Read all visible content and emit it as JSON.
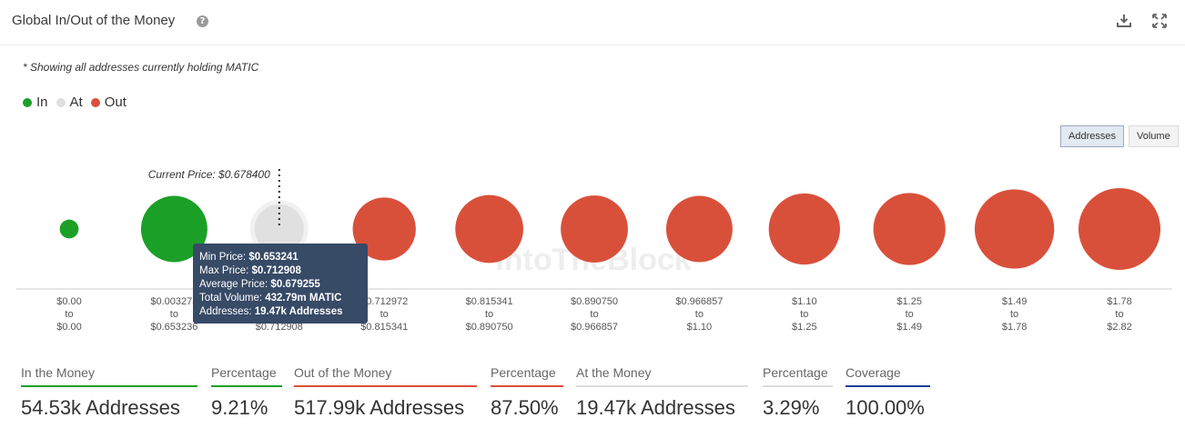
{
  "header": {
    "title": "Global In/Out of the Money",
    "help_icon": "question-mark-icon",
    "download_icon": "download-icon",
    "expand_icon": "expand-icon"
  },
  "note": "* Showing all addresses currently holding MATIC",
  "legend": [
    {
      "label": "In",
      "color": "#1ba027"
    },
    {
      "label": "At",
      "color": "#e0e0e0"
    },
    {
      "label": "Out",
      "color": "#d9503a"
    }
  ],
  "toggle": {
    "addresses": "Addresses",
    "volume": "Volume",
    "selected": "Addresses"
  },
  "watermark": "IntoTheBlock",
  "chart_data": {
    "type": "bubble",
    "current_price_label": "Current Price: $0.678400",
    "measure": "addresses",
    "ranges": [
      {
        "from": "$0.00",
        "to": "$0.00",
        "status": "in",
        "relative_size": 0.23
      },
      {
        "from": "$0.003275",
        "to": "$0.653236",
        "status": "in",
        "relative_size": 0.81
      },
      {
        "from": "$0.653241",
        "to": "$0.712908",
        "status": "at",
        "relative_size": 0.6
      },
      {
        "from": "$0.712972",
        "to": "$0.815341",
        "status": "out",
        "relative_size": 0.77
      },
      {
        "from": "$0.815341",
        "to": "$0.890750",
        "status": "out",
        "relative_size": 0.83
      },
      {
        "from": "$0.890750",
        "to": "$0.966857",
        "status": "out",
        "relative_size": 0.82
      },
      {
        "from": "$0.966857",
        "to": "$1.10",
        "status": "out",
        "relative_size": 0.81
      },
      {
        "from": "$1.10",
        "to": "$1.25",
        "status": "out",
        "relative_size": 0.87
      },
      {
        "from": "$1.25",
        "to": "$1.49",
        "status": "out",
        "relative_size": 0.88
      },
      {
        "from": "$1.49",
        "to": "$1.78",
        "status": "out",
        "relative_size": 0.97
      },
      {
        "from": "$1.78",
        "to": "$2.82",
        "status": "out",
        "relative_size": 1.0
      }
    ],
    "tooltip": {
      "min_price_label": "Min Price:",
      "min_price": "$0.653241",
      "max_price_label": "Max Price:",
      "max_price": "$0.712908",
      "avg_price_label": "Average Price:",
      "avg_price": "$0.679255",
      "volume_label": "Total Volume:",
      "volume": "432.79m MATIC",
      "addresses_label": "Addresses:",
      "addresses": "19.47k Addresses"
    }
  },
  "stats": [
    {
      "label": "In the Money",
      "value": "54.53k Addresses",
      "color": "#1ba027"
    },
    {
      "label": "Percentage",
      "value": "9.21%",
      "color": "#1ba027"
    },
    {
      "label": "Out of the Money",
      "value": "517.99k Addresses",
      "color": "#d9503a"
    },
    {
      "label": "Percentage",
      "value": "87.50%",
      "color": "#d9503a"
    },
    {
      "label": "At the Money",
      "value": "19.47k Addresses",
      "color": "#dddddd"
    },
    {
      "label": "Percentage",
      "value": "3.29%",
      "color": "#dddddd"
    },
    {
      "label": "Coverage",
      "value": "100.00%",
      "color": "#1a3fa0"
    }
  ]
}
